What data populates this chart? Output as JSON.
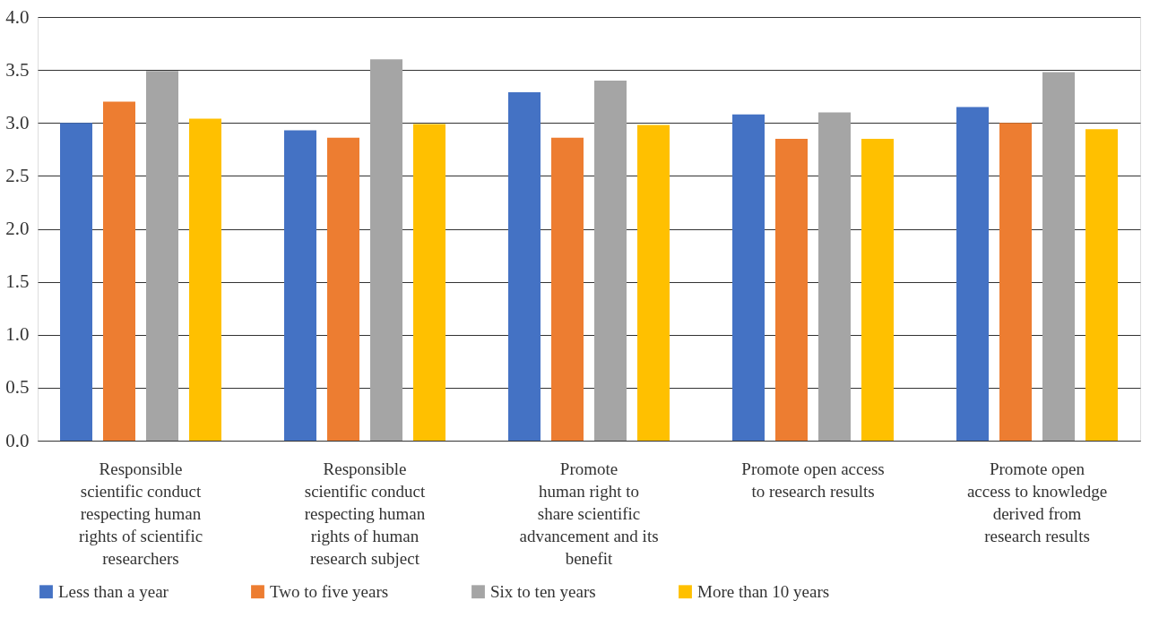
{
  "chart_data": {
    "type": "bar",
    "categories": [
      "Responsible\nscientific conduct\nrespecting human\nrights of scientific\nresearchers",
      "Responsible\nscientific conduct\nrespecting human\nrights of human\nresearch subject",
      "Promote\nhuman right to\nshare scientific\nadvancement and its\nbenefit",
      "Promote open access\nto research results",
      "Promote open\naccess to knowledge\nderived from\nresearch results"
    ],
    "series": [
      {
        "name": "Less than a year",
        "color": "#4472c4",
        "values": [
          3.0,
          2.93,
          3.29,
          3.08,
          3.15
        ]
      },
      {
        "name": "Two to five years",
        "color": "#ed7d31",
        "values": [
          3.2,
          2.86,
          2.86,
          2.85,
          3.0
        ]
      },
      {
        "name": "Six to ten years",
        "color": "#a5a5a5",
        "values": [
          3.49,
          3.6,
          3.4,
          3.1,
          3.48
        ]
      },
      {
        "name": "More than 10 years",
        "color": "#ffc000",
        "values": [
          3.04,
          2.99,
          2.98,
          2.85,
          2.94
        ]
      }
    ],
    "ylim": [
      0,
      4.0
    ],
    "yticks": [
      {
        "value": 0,
        "label": "0.0"
      },
      {
        "value": 0.5,
        "label": "0.5"
      },
      {
        "value": 1,
        "label": "1.0"
      },
      {
        "value": 1.5,
        "label": "1.5"
      },
      {
        "value": 2,
        "label": "2.0"
      },
      {
        "value": 2.5,
        "label": "2.5"
      },
      {
        "value": 3,
        "label": "3.0"
      },
      {
        "value": 3.5,
        "label": "3.5"
      },
      {
        "value": 4,
        "label": "4.0"
      }
    ],
    "grid": "y",
    "legend": "bottom"
  }
}
